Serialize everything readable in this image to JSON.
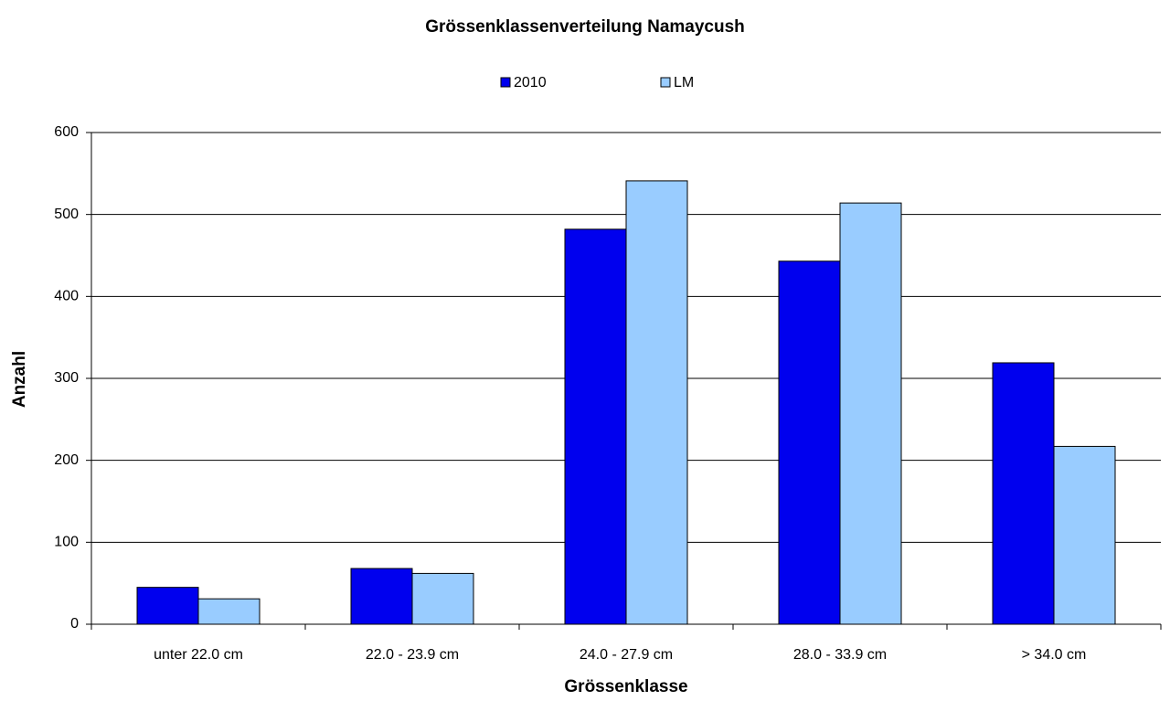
{
  "chart_data": {
    "type": "bar",
    "title": "Grössenklassenverteilung Namaycush",
    "x_label": "Grössenklasse",
    "y_label": "Anzahl",
    "categories": [
      "unter 22.0 cm",
      "22.0 - 23.9 cm",
      "24.0 - 27.9 cm",
      "28.0 - 33.9 cm",
      "> 34.0 cm"
    ],
    "series": [
      {
        "name": "2010",
        "color": "#0000ee",
        "values": [
          45,
          68,
          482,
          443,
          319
        ]
      },
      {
        "name": "LM",
        "color": "#99ccff",
        "values": [
          31,
          62,
          541,
          514,
          217
        ]
      }
    ],
    "ylim": [
      0,
      600
    ],
    "yticks": [
      0,
      100,
      200,
      300,
      400,
      500,
      600
    ],
    "grid": true,
    "legend": "top"
  }
}
